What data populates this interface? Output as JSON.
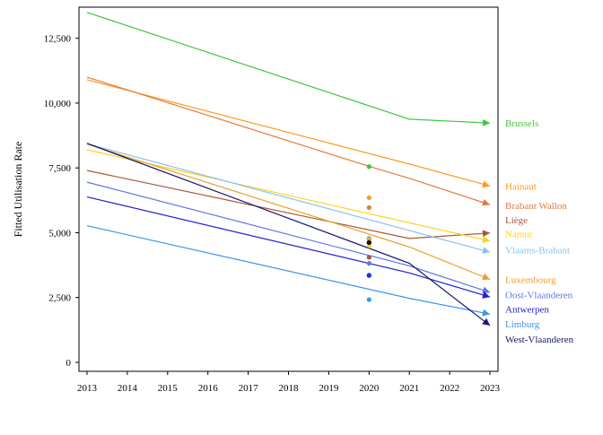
{
  "chart_data": {
    "type": "line",
    "title": "",
    "xlabel": "",
    "ylabel": "Fitted Utilisation Rate",
    "x": [
      2013,
      2014,
      2015,
      2016,
      2017,
      2018,
      2019,
      2020,
      2021,
      2022,
      2023
    ],
    "x_ticks": [
      "2013",
      "2014",
      "2015",
      "2016",
      "2017",
      "2018",
      "2019",
      "2020",
      "2021",
      "2022",
      "2023"
    ],
    "xlim": [
      2013,
      2023
    ],
    "ylim": [
      0,
      13700
    ],
    "y_ticks": [
      0,
      2500,
      5000,
      7500,
      10000,
      12500
    ],
    "y_tick_labels": [
      "0",
      "2,500",
      "5,000",
      "7,500",
      "10,000",
      "12,500"
    ],
    "grid": false,
    "legend": "labels at line ends, right",
    "series": [
      {
        "name": "Brussels",
        "color": "#3cc83c",
        "x": [
          2013,
          2021,
          2023
        ],
        "y": [
          13500,
          9380,
          9230
        ],
        "observed_2020": 7550
      },
      {
        "name": "Hainaut",
        "color": "#ff9a1f",
        "x": [
          2013,
          2021,
          2023
        ],
        "y": [
          10900,
          7650,
          6800
        ],
        "observed_2020": 6350
      },
      {
        "name": "Brabant Wallon",
        "color": "#e07a3c",
        "x": [
          2013,
          2020,
          2021,
          2023
        ],
        "y": [
          11000,
          7560,
          7100,
          6080
        ],
        "observed_2020": 5970
      },
      {
        "name": "Liège",
        "color": "#a55a34",
        "x": [
          2013,
          2021,
          2023
        ],
        "y": [
          7400,
          4780,
          4990
        ],
        "observed_2020": 4050
      },
      {
        "name": "Namur",
        "color": "#ffd21f",
        "x": [
          2013,
          2023
        ],
        "y": [
          8200,
          4680
        ],
        "observed_2020": 4500
      },
      {
        "name": "Vlaams-Brabant",
        "color": "#87c3ef",
        "x": [
          2013,
          2023
        ],
        "y": [
          8430,
          4250
        ],
        "observed_2020": 4800
      },
      {
        "name": "Luxembourg",
        "color": "#e6a030",
        "x": [
          2013,
          2021,
          2023
        ],
        "y": [
          8420,
          4450,
          3200
        ],
        "observed_2020": 4750
      },
      {
        "name": "Oost-Vlaanderen",
        "color": "#5a78e6",
        "x": [
          2013,
          2021,
          2023
        ],
        "y": [
          6950,
          3720,
          2700
        ],
        "observed_2020": 3820
      },
      {
        "name": "Antwerpen",
        "color": "#1e1ed2",
        "x": [
          2013,
          2021,
          2023
        ],
        "y": [
          6380,
          3450,
          2520
        ],
        "observed_2020": 3350
      },
      {
        "name": "Limburg",
        "color": "#3a96ee",
        "x": [
          2013,
          2021,
          2023
        ],
        "y": [
          5270,
          2470,
          1860
        ],
        "observed_2020": 2420
      },
      {
        "name": "West-Vlaanderen",
        "color": "#14146e",
        "x": [
          2013,
          2021,
          2023
        ],
        "y": [
          8450,
          3820,
          1420
        ],
        "observed_2020": 4620
      }
    ],
    "observed_points": {
      "x": 2020,
      "extra": [
        {
          "color": "#111111",
          "y": 4620
        },
        {
          "color": "#1e2ee0",
          "y": 3360
        }
      ]
    }
  },
  "label_y_values": {
    "Brussels": 9230,
    "Hainaut": 6790,
    "Brabant Wallon": 6050,
    "Liège": 5500,
    "Namur": 4960,
    "Vlaams-Brabant": 4350,
    "Luxembourg": 3200,
    "Oost-Vlaanderen": 2620,
    "Antwerpen": 2060,
    "Limburg": 1480,
    "West-Vlaanderen": 900
  }
}
